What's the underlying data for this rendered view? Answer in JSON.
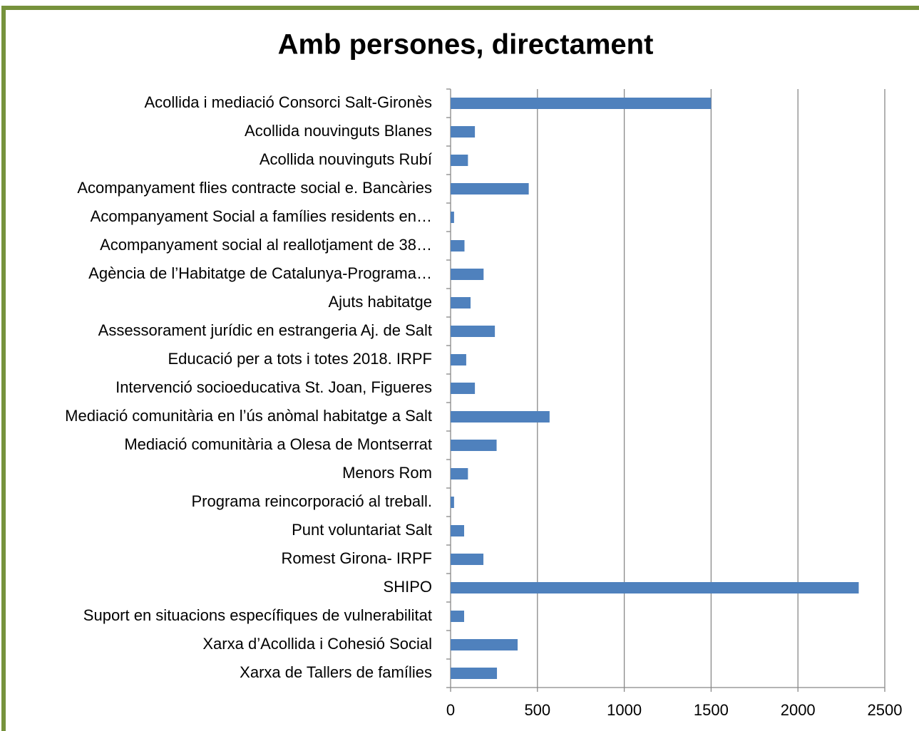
{
  "chart_data": {
    "type": "bar",
    "orientation": "horizontal",
    "title": "Amb persones, directament",
    "categories": [
      "Acollida i mediació Consorci Salt-Gironès",
      "Acollida nouvinguts Blanes",
      "Acollida nouvinguts Rubí",
      "Acompanyament flies contracte social e. Bancàries",
      "Acompanyament Social a famílies residents en…",
      "Acompanyament social al reallotjament de 38…",
      "Agència de l’Habitatge de Catalunya-Programa…",
      "Ajuts habitatge",
      "Assessorament jurídic en estrangeria  Aj.  de Salt",
      "Educació per a tots i totes 2018. IRPF",
      "Intervenció socioeducativa St. Joan, Figueres",
      "Mediació comunitària  en l’ús anòmal habitatge a Salt",
      "Mediació comunitària a Olesa de Montserrat",
      "Menors Rom",
      "Programa reincorporació al treball.",
      "Punt voluntariat Salt",
      "Romest Girona- IRPF",
      "SHIPO",
      "Suport en situacions específiques de vulnerabilitat",
      "Xarxa d’Acollida i Cohesió Social",
      "Xarxa de Tallers de famílies"
    ],
    "values": [
      1500,
      140,
      100,
      450,
      20,
      80,
      190,
      115,
      255,
      90,
      140,
      570,
      265,
      100,
      20,
      78,
      189,
      2350,
      78,
      386,
      267
    ],
    "color": "#4f81bd",
    "xlim": [
      0,
      2500
    ],
    "xticks": [
      0,
      500,
      1000,
      1500,
      2000,
      2500
    ],
    "grid": true
  }
}
